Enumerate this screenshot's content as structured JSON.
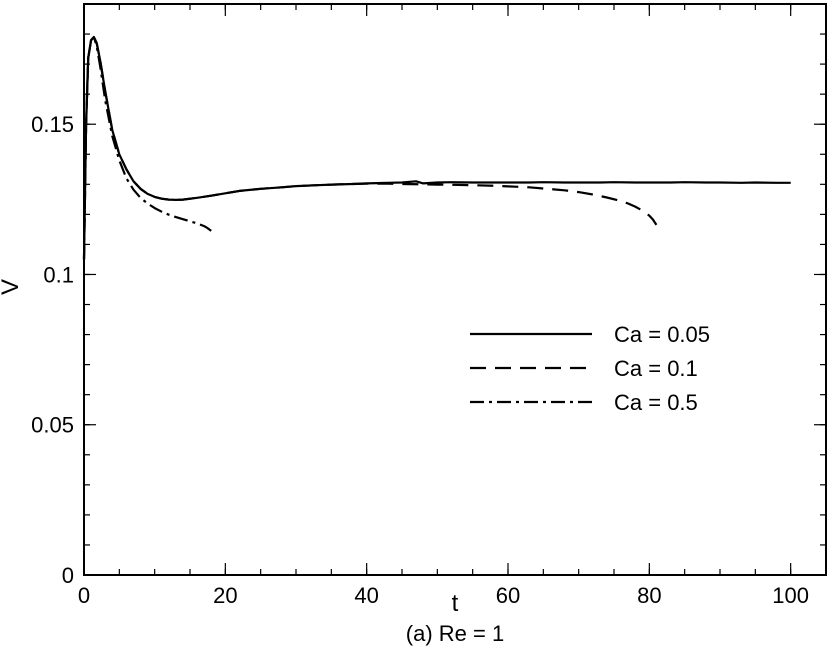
{
  "chart_data": {
    "type": "line",
    "xlabel": "t",
    "ylabel": "V",
    "caption": "(a) Re = 1",
    "xlim": [
      0,
      105
    ],
    "ylim": [
      0,
      0.19
    ],
    "xticks": [
      0,
      20,
      40,
      60,
      80,
      100
    ],
    "xtick_labels": [
      "0",
      "20",
      "40",
      "60",
      "80",
      "100"
    ],
    "yticks": [
      0,
      0.05,
      0.1,
      0.15
    ],
    "ytick_labels": [
      "0",
      "0.05",
      "0.1",
      "0.15"
    ],
    "x_minor_step": 5,
    "y_minor_step": 0.01,
    "grid": false,
    "legend_position": "center-right",
    "series": [
      {
        "name": "Ca = 0.05",
        "style": "solid",
        "x": [
          0,
          0.3,
          0.6,
          1.0,
          1.4,
          1.8,
          2.3,
          3,
          4,
          5,
          6,
          7,
          8,
          9,
          10,
          11,
          12,
          13,
          14,
          16,
          18,
          20,
          22,
          25,
          28,
          30,
          33,
          35,
          38,
          40,
          43,
          45,
          47,
          48,
          50,
          52,
          55,
          58,
          60,
          63,
          65,
          68,
          70,
          73,
          75,
          78,
          80,
          83,
          85,
          88,
          90,
          93,
          95,
          98,
          100
        ],
        "y": [
          0.105,
          0.15,
          0.172,
          0.178,
          0.179,
          0.177,
          0.171,
          0.161,
          0.148,
          0.14,
          0.135,
          0.131,
          0.1285,
          0.1268,
          0.1258,
          0.1252,
          0.1249,
          0.1248,
          0.1249,
          0.1255,
          0.1262,
          0.127,
          0.1278,
          0.1285,
          0.129,
          0.1294,
          0.1297,
          0.1299,
          0.1301,
          0.1303,
          0.1305,
          0.1306,
          0.131,
          0.1303,
          0.1306,
          0.1307,
          0.1306,
          0.1306,
          0.1306,
          0.1306,
          0.1307,
          0.1306,
          0.1306,
          0.1306,
          0.1307,
          0.1306,
          0.1306,
          0.1306,
          0.1307,
          0.1306,
          0.1306,
          0.1305,
          0.1306,
          0.1305,
          0.1305
        ]
      },
      {
        "name": "Ca = 0.1",
        "style": "dashed",
        "x": [
          0,
          0.3,
          0.6,
          1.0,
          1.4,
          1.8,
          2.3,
          3,
          4,
          5,
          6,
          7,
          8,
          9,
          10,
          11,
          12,
          13,
          14,
          16,
          18,
          20,
          22,
          25,
          28,
          30,
          33,
          35,
          38,
          40,
          43,
          45,
          48,
          50,
          53,
          55,
          58,
          60,
          63,
          65,
          68,
          70,
          72,
          74,
          76,
          77,
          78,
          79,
          80,
          80.5,
          81
        ],
        "y": [
          0.105,
          0.15,
          0.172,
          0.178,
          0.179,
          0.177,
          0.171,
          0.161,
          0.148,
          0.14,
          0.135,
          0.131,
          0.1285,
          0.1268,
          0.1258,
          0.1252,
          0.1249,
          0.1248,
          0.1249,
          0.1255,
          0.1262,
          0.127,
          0.1278,
          0.1285,
          0.129,
          0.1294,
          0.1297,
          0.1299,
          0.1301,
          0.1302,
          0.1302,
          0.1301,
          0.13,
          0.1299,
          0.1298,
          0.1297,
          0.1295,
          0.1293,
          0.129,
          0.1286,
          0.128,
          0.1274,
          0.1266,
          0.1256,
          0.1244,
          0.1236,
          0.1226,
          0.1213,
          0.1196,
          0.1183,
          0.1165
        ]
      },
      {
        "name": "Ca = 0.5",
        "style": "dashdot",
        "x": [
          0,
          0.3,
          0.6,
          1.0,
          1.4,
          1.8,
          2.3,
          3,
          4,
          5,
          6,
          7,
          8,
          9,
          10,
          11,
          12,
          13,
          14,
          15,
          16,
          17,
          17.5,
          18
        ],
        "y": [
          0.105,
          0.15,
          0.172,
          0.178,
          0.179,
          0.176,
          0.169,
          0.158,
          0.146,
          0.138,
          0.132,
          0.1282,
          0.1255,
          0.1236,
          0.1221,
          0.1209,
          0.1199,
          0.1191,
          0.1184,
          0.1177,
          0.117,
          0.1161,
          0.1154,
          0.1145
        ]
      }
    ]
  }
}
